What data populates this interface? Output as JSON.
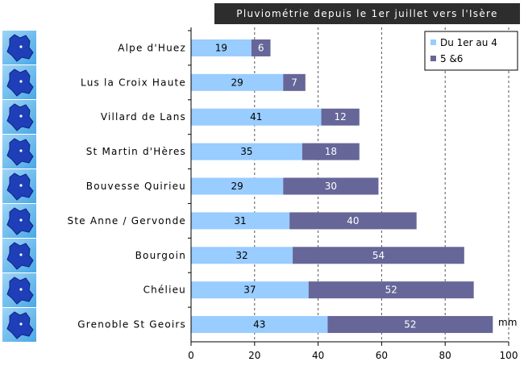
{
  "chart_data": {
    "type": "bar",
    "orientation": "horizontal",
    "stacked": true,
    "title": "Pluviométrie depuis le 1er juillet vers l'Isère",
    "unit_label": "mm",
    "categories": [
      "Alpe d'Huez",
      "Lus la Croix Haute",
      "Villard de Lans",
      "St Martin d'Hères",
      "Bouvesse Quirieu",
      "Ste Anne / Gervonde",
      "Bourgoin",
      "Chélieu",
      "Grenoble St Geoirs"
    ],
    "series": [
      {
        "name": "Du 1er au 4",
        "values": [
          19,
          29,
          41,
          35,
          29,
          31,
          32,
          37,
          43
        ],
        "color": "#99ccff"
      },
      {
        "name": "5 &6",
        "values": [
          6,
          7,
          12,
          18,
          30,
          40,
          54,
          52,
          52
        ],
        "color": "#666699"
      }
    ],
    "xlim": [
      0,
      100
    ],
    "xticks": [
      0,
      20,
      40,
      60,
      80,
      100
    ],
    "grid": "vertical dashed",
    "legend_position": "top-right",
    "row_icon": "isere-department-map-icon"
  }
}
